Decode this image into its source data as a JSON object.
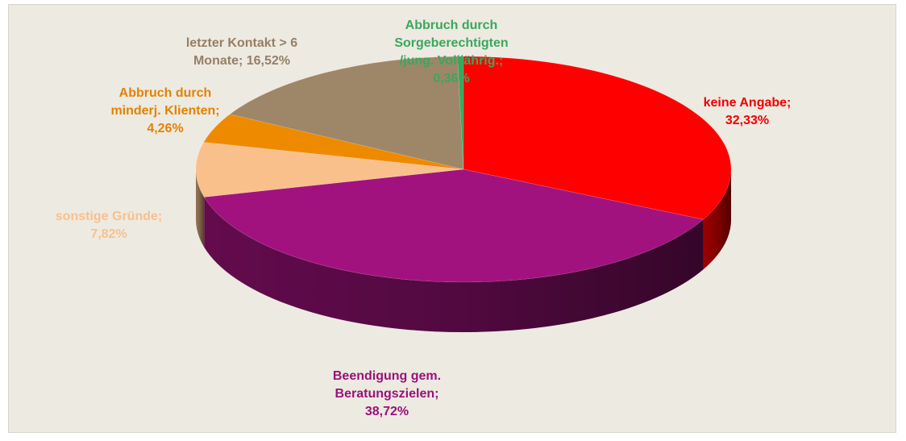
{
  "chart_data": {
    "type": "pie3d",
    "categories": [
      "keine Angabe;",
      "Beendigung gem. Beratungszielen;",
      "sonstige Gründe;",
      "Abbruch durch minderj. Klienten;",
      "letzter Kontakt > 6 Monate;",
      "Abbruch durch Sorgeberechtigten /jung. Volljährig.;"
    ],
    "values": [
      32.33,
      38.72,
      7.82,
      4.26,
      16.52,
      0.36
    ],
    "value_labels": [
      "32,33%",
      "38,72%",
      "7,82%",
      "4,26%",
      "16,52%",
      "0,36%"
    ],
    "colors": [
      "#ff0000",
      "#a2127e",
      "#f9c08c",
      "#ee8a00",
      "#9e8669",
      "#3aa85c"
    ]
  }
}
